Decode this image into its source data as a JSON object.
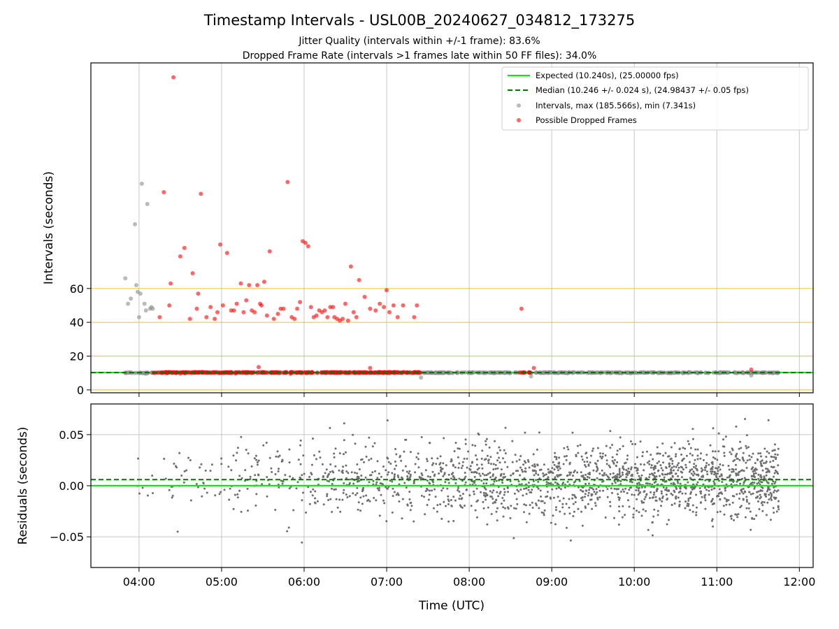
{
  "figure": {
    "title": "Timestamp Intervals - USL00B_20240627_034812_173275",
    "subtitle_1": "Jitter Quality (intervals within +/-1 frame): 83.6%",
    "subtitle_2": "Dropped Frame Rate (intervals >1 frames late within 50 FF files): 34.0%"
  },
  "colors": {
    "expected": "#00ee00",
    "median": "#007700",
    "intervals": "#8c8c8c",
    "dropped": "#ff0000",
    "reference": "#f2c94c",
    "residuals": "#6e6e6e",
    "grid": "#b0b0b0"
  },
  "chart_data": [
    {
      "type": "scatter",
      "ylabel": "Intervals (seconds)",
      "y_ticks": [
        0,
        20,
        40,
        60
      ],
      "y_tick_labels": [
        "0",
        "20",
        "40",
        "60"
      ],
      "ylim": [
        -1.7,
        193.5
      ],
      "xlim": [
        "03:25",
        "12:10"
      ],
      "x_ticks": [
        "04:00",
        "05:00",
        "06:00",
        "07:00",
        "08:00",
        "09:00",
        "10:00",
        "11:00",
        "12:00"
      ],
      "grid": "vertical",
      "reference_lines_y": [
        0,
        20,
        40,
        60
      ],
      "expected_interval": 10.24,
      "median_interval": 10.246,
      "legend_position": "top-right",
      "legend": [
        {
          "label": "Expected (10.240s), (25.00000 fps)"
        },
        {
          "label": "Median (10.246 +/- 0.024 s), (24.98437 +/- 0.05 fps)"
        },
        {
          "label": "Intervals, max (185.566s), min (7.341s)"
        },
        {
          "label": "Possible Dropped Frames"
        }
      ],
      "series": [
        {
          "name": "Intervals, max (185.566s), min (7.341s)",
          "baseline": {
            "x_start": "03:50",
            "x_end": "11:45",
            "y": 10.2
          },
          "points": [
            [
              "03:50",
              66
            ],
            [
              "03:52",
              51
            ],
            [
              "03:54",
              54
            ],
            [
              "03:57",
              98
            ],
            [
              "03:58",
              62
            ],
            [
              "03:59",
              58
            ],
            [
              "04:00",
              43
            ],
            [
              "04:01",
              57
            ],
            [
              "04:02",
              122
            ],
            [
              "04:04",
              51
            ],
            [
              "04:05",
              47
            ],
            [
              "04:06",
              110
            ],
            [
              "04:08",
              48
            ],
            [
              "04:09",
              49
            ],
            [
              "04:10",
              48
            ],
            [
              "04:05",
              9.5
            ],
            [
              "04:30",
              9.5
            ],
            [
              "05:10",
              9.6
            ],
            [
              "05:50",
              9.4
            ],
            [
              "07:25",
              7.3
            ],
            [
              "08:45",
              8.0
            ],
            [
              "11:25",
              8.5
            ]
          ]
        },
        {
          "name": "Possible Dropped Frames",
          "baseline": {
            "x_start": "04:10",
            "x_end": "07:25",
            "y": 10.3
          },
          "extra_cluster": {
            "x_start": "08:35",
            "x_end": "08:45",
            "y": 10.3
          },
          "points": [
            [
              "04:15",
              43
            ],
            [
              "04:18",
              117
            ],
            [
              "04:22",
              50
            ],
            [
              "04:23",
              63
            ],
            [
              "04:25",
              185
            ],
            [
              "04:30",
              79
            ],
            [
              "04:33",
              84
            ],
            [
              "04:37",
              42
            ],
            [
              "04:39",
              69
            ],
            [
              "04:42",
              48
            ],
            [
              "04:43",
              57
            ],
            [
              "04:45",
              116
            ],
            [
              "04:49",
              43
            ],
            [
              "04:52",
              49
            ],
            [
              "04:55",
              42
            ],
            [
              "04:57",
              46
            ],
            [
              "04:59",
              86
            ],
            [
              "05:01",
              50
            ],
            [
              "05:04",
              81
            ],
            [
              "05:07",
              47
            ],
            [
              "05:09",
              47
            ],
            [
              "05:11",
              51
            ],
            [
              "05:14",
              63
            ],
            [
              "05:16",
              46
            ],
            [
              "05:18",
              53
            ],
            [
              "05:20",
              62
            ],
            [
              "05:22",
              47
            ],
            [
              "05:24",
              46
            ],
            [
              "05:26",
              62
            ],
            [
              "05:28",
              51
            ],
            [
              "05:29",
              50
            ],
            [
              "05:31",
              64
            ],
            [
              "05:33",
              44
            ],
            [
              "05:35",
              82
            ],
            [
              "05:38",
              42
            ],
            [
              "05:41",
              45
            ],
            [
              "05:43",
              48
            ],
            [
              "05:45",
              48
            ],
            [
              "05:48",
              123
            ],
            [
              "05:51",
              43
            ],
            [
              "05:53",
              42
            ],
            [
              "05:55",
              48
            ],
            [
              "05:57",
              52
            ],
            [
              "05:59",
              88
            ],
            [
              "06:01",
              87
            ],
            [
              "06:03",
              85
            ],
            [
              "06:05",
              49
            ],
            [
              "06:07",
              43
            ],
            [
              "06:09",
              44
            ],
            [
              "06:11",
              47
            ],
            [
              "06:13",
              46
            ],
            [
              "06:15",
              47
            ],
            [
              "06:17",
              43
            ],
            [
              "06:19",
              49
            ],
            [
              "06:21",
              49
            ],
            [
              "06:22",
              43
            ],
            [
              "06:24",
              42
            ],
            [
              "06:26",
              41
            ],
            [
              "06:28",
              42
            ],
            [
              "06:30",
              51
            ],
            [
              "06:32",
              41
            ],
            [
              "06:34",
              73
            ],
            [
              "06:36",
              46
            ],
            [
              "06:38",
              43
            ],
            [
              "06:40",
              65
            ],
            [
              "06:44",
              55
            ],
            [
              "06:48",
              48
            ],
            [
              "06:52",
              47
            ],
            [
              "06:55",
              51
            ],
            [
              "06:58",
              49
            ],
            [
              "07:00",
              59
            ],
            [
              "07:02",
              46
            ],
            [
              "07:05",
              50
            ],
            [
              "07:08",
              43
            ],
            [
              "07:12",
              50
            ],
            [
              "07:20",
              43
            ],
            [
              "07:22",
              50
            ],
            [
              "08:38",
              48
            ],
            [
              "05:27",
              13.5
            ],
            [
              "06:48",
              13
            ],
            [
              "08:47",
              13
            ],
            [
              "11:25",
              12
            ]
          ]
        }
      ]
    },
    {
      "type": "scatter",
      "ylabel": "Residuals (seconds)",
      "xlabel": "Time (UTC)",
      "y_ticks": [
        -0.05,
        0.0,
        0.05
      ],
      "y_tick_labels": [
        "−0.05",
        "0.00",
        "0.05"
      ],
      "ylim": [
        -0.08,
        0.08
      ],
      "xlim": [
        "03:25",
        "12:10"
      ],
      "x_ticks": [
        "04:00",
        "05:00",
        "06:00",
        "07:00",
        "08:00",
        "09:00",
        "10:00",
        "11:00",
        "12:00"
      ],
      "x_tick_labels": [
        "04:00",
        "05:00",
        "06:00",
        "07:00",
        "08:00",
        "09:00",
        "10:00",
        "11:00",
        "12:00"
      ],
      "grid": "both",
      "expected_residual": 0.0,
      "median_residual": 0.006,
      "residual_spread_sigma": 0.018,
      "x_range": [
        "03:50",
        "11:45"
      ]
    }
  ]
}
